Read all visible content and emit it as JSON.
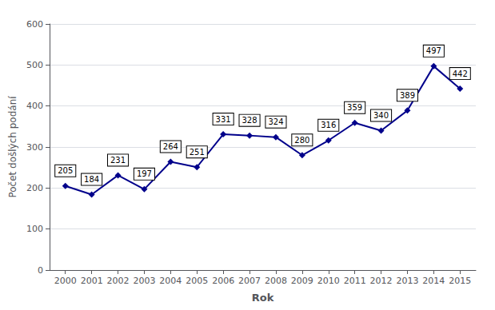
{
  "chart_data": {
    "type": "line",
    "x": [
      2000,
      2001,
      2002,
      2003,
      2004,
      2005,
      2006,
      2007,
      2008,
      2009,
      2010,
      2011,
      2012,
      2013,
      2014,
      2015
    ],
    "values": [
      205,
      184,
      231,
      197,
      264,
      251,
      331,
      328,
      324,
      280,
      316,
      359,
      340,
      389,
      497,
      442
    ],
    "color": "#00008B",
    "marker": "diamond",
    "xlabel": "Rok",
    "ylabel": "Počet došlých podání",
    "xlim": [
      1999.4,
      2015.6
    ],
    "xticks": [
      2000,
      2001,
      2002,
      2003,
      2004,
      2005,
      2006,
      2007,
      2008,
      2009,
      2010,
      2011,
      2012,
      2013,
      2014,
      2015
    ],
    "ylim": [
      0,
      600
    ],
    "yticks": [
      0,
      100,
      200,
      300,
      400,
      500,
      600
    ],
    "grid": true,
    "data_labels": true
  }
}
